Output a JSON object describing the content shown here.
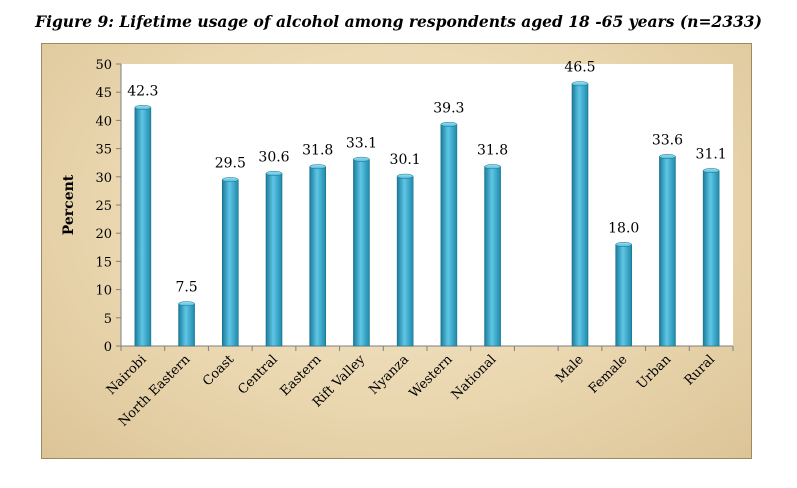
{
  "figure_title": "Figure 9: Lifetime usage  of alcohol  among respondents aged 18 -65 years (n=2333)",
  "chart_data": {
    "type": "bar",
    "title": "Figure 9: Lifetime usage  of alcohol  among respondents aged 18 -65 years (n=2333)",
    "xlabel": "",
    "ylabel": "Percent",
    "ylim": [
      0,
      50
    ],
    "yticks": [
      0,
      5,
      10,
      15,
      20,
      25,
      30,
      35,
      40,
      45,
      50
    ],
    "grid": false,
    "legend": "none",
    "categories": [
      "Nairobi",
      "North Eastern",
      "Coast",
      "Central",
      "Eastern",
      "Rift Valley",
      "Nyanza",
      "Western",
      "National",
      "",
      "Male",
      "Female",
      "Urban",
      "Rural"
    ],
    "values": [
      42.3,
      7.5,
      29.5,
      30.6,
      31.8,
      33.1,
      30.1,
      39.3,
      31.8,
      null,
      46.5,
      18.0,
      33.6,
      31.1
    ],
    "data_labels": [
      "42.3",
      "7.5",
      "29.5",
      "30.6",
      "31.8",
      "33.1",
      "30.1",
      "39.3",
      "31.8",
      "",
      "46.5",
      "18.0",
      "33.6",
      "31.1"
    ],
    "colors": {
      "bar_light": "#5fc6e6",
      "bar_dark": "#1b7b9a",
      "plot_bg": "#ffffff",
      "frame_bg": "#ead7b0"
    }
  }
}
